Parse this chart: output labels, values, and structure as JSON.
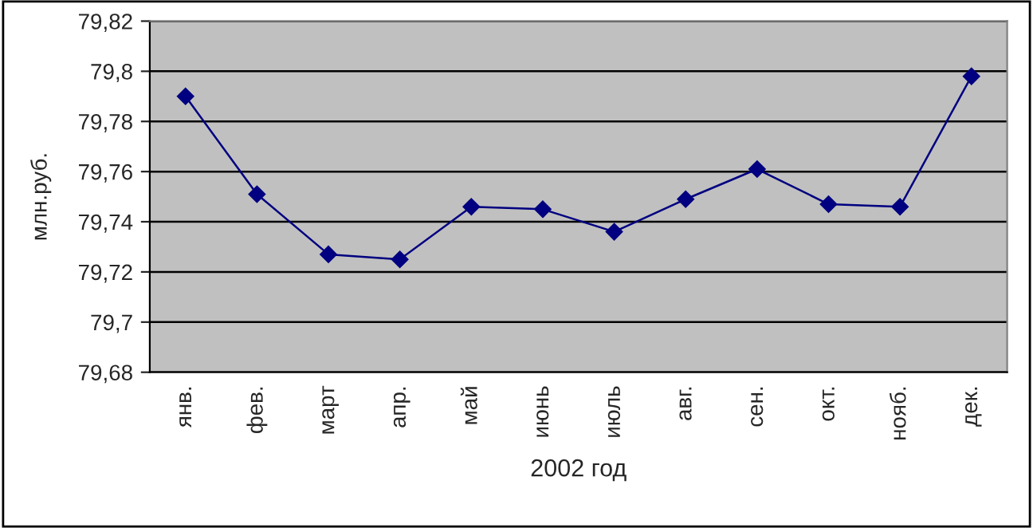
{
  "chart_data": {
    "type": "line",
    "xlabel": "2002 год",
    "ylabel": "млн.руб.",
    "categories": [
      "янв.",
      "фев.",
      "март",
      "апр.",
      "май",
      "июнь",
      "июль",
      "авг.",
      "сен.",
      "окт.",
      "нояб.",
      "дек."
    ],
    "series": [
      {
        "color": "#000080",
        "values": [
          79.79,
          79.751,
          79.727,
          79.725,
          79.746,
          79.745,
          79.736,
          79.749,
          79.761,
          79.747,
          79.746,
          79.798
        ]
      }
    ],
    "ylim": [
      79.68,
      79.82
    ],
    "yticks": [
      {
        "value": 79.68,
        "label": "79,68"
      },
      {
        "value": 79.7,
        "label": "79,7"
      },
      {
        "value": 79.72,
        "label": "79,72"
      },
      {
        "value": 79.74,
        "label": "79,74"
      },
      {
        "value": 79.76,
        "label": "79,76"
      },
      {
        "value": 79.78,
        "label": "79,78"
      },
      {
        "value": 79.8,
        "label": "79,8"
      },
      {
        "value": 79.82,
        "label": "79,82"
      }
    ],
    "grid": "y",
    "marker": "diamond",
    "line_style": "solid",
    "legend": false
  }
}
